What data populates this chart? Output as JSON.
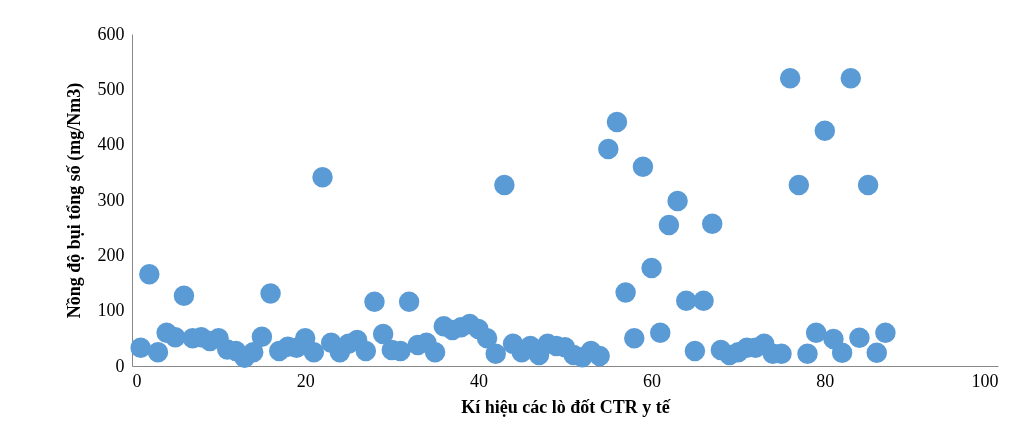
{
  "chart_data": {
    "type": "scatter",
    "xlabel": "Kí hiệu các lò đốt CTR y tế",
    "ylabel": "Nồng độ bụi tổng số (mg/Nm3)",
    "x": [
      1,
      2,
      3,
      4,
      5,
      6,
      7,
      8,
      9,
      10,
      11,
      12,
      13,
      14,
      15,
      16,
      17,
      18,
      19,
      20,
      21,
      22,
      23,
      24,
      25,
      26,
      27,
      28,
      29,
      30,
      31,
      32,
      33,
      34,
      35,
      36,
      37,
      38,
      39,
      40,
      41,
      42,
      43,
      44,
      45,
      46,
      47,
      48,
      49,
      50,
      51,
      52,
      53,
      54,
      55,
      56,
      57,
      58,
      59,
      60,
      61,
      62,
      63,
      64,
      65,
      66,
      67,
      68,
      69,
      70,
      71,
      72,
      73,
      74,
      75,
      76,
      77,
      78,
      79,
      80,
      81,
      82,
      83,
      84,
      85,
      86,
      87
    ],
    "series": [
      {
        "color": "#5b9bd5",
        "values": [
          33,
          166,
          25,
          60,
          52,
          127,
          50,
          52,
          45,
          50,
          30,
          27,
          15,
          25,
          53,
          131,
          27,
          35,
          33,
          50,
          25,
          341,
          42,
          25,
          40,
          47,
          27,
          116,
          58,
          29,
          27,
          116,
          38,
          42,
          25,
          72,
          65,
          70,
          76,
          67,
          50,
          22,
          327,
          40,
          25,
          36,
          20,
          40,
          36,
          34,
          20,
          16,
          27,
          18,
          392,
          441,
          133,
          50,
          360,
          177,
          60,
          255,
          298,
          118,
          27,
          118,
          257,
          29,
          20,
          25,
          33,
          33,
          40,
          22,
          22,
          520,
          327,
          22,
          60,
          425,
          49,
          24,
          520,
          51,
          327,
          24,
          60
        ]
      }
    ],
    "xlim": [
      0,
      100
    ],
    "xticks": [
      0,
      20,
      40,
      60,
      80,
      100
    ],
    "ylim": [
      0,
      600
    ],
    "yticks": [
      0,
      100,
      200,
      300,
      400,
      500,
      600
    ],
    "marker": "circle",
    "grid": false
  }
}
